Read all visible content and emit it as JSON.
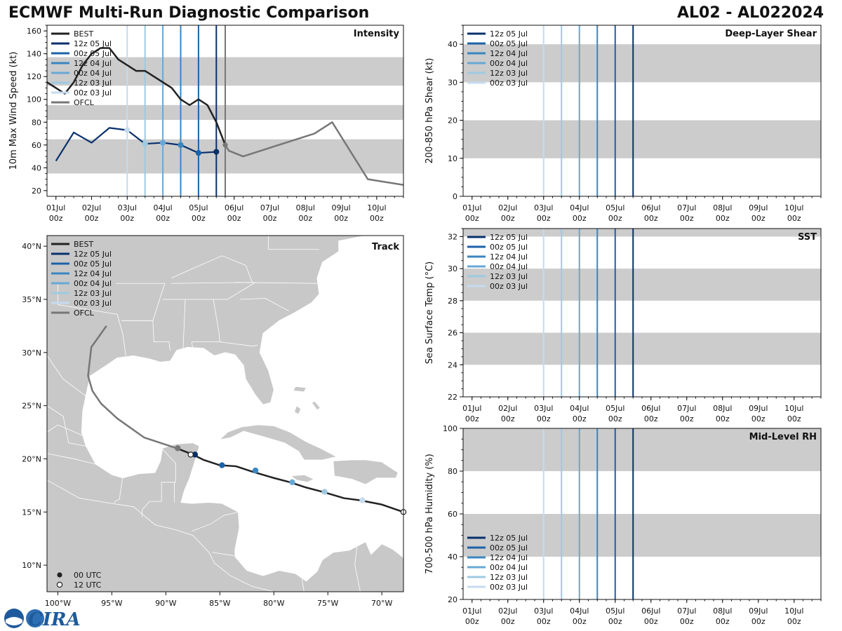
{
  "header": {
    "title_left": "ECMWF Multi-Run Diagnostic Comparison",
    "title_right": "AL02 - AL022024"
  },
  "colors": {
    "best": "#222222",
    "ofcl": "#777777",
    "band": "#cccccc",
    "runs": [
      "#08306b",
      "#1c62a8",
      "#3a86c0",
      "#67a8d6",
      "#9ecae1",
      "#c6dbef"
    ]
  },
  "runs": [
    "12z 05 Jul",
    "00z 05 Jul",
    "12z 04 Jul",
    "00z 04 Jul",
    "12z 03 Jul",
    "00z 03 Jul"
  ],
  "time_axis": {
    "day_labels": [
      "01Jul",
      "02Jul",
      "03Jul",
      "04Jul",
      "05Jul",
      "06Jul",
      "07Jul",
      "08Jul",
      "09Jul",
      "10Jul"
    ],
    "hour_label": "00z"
  },
  "chart_data": [
    {
      "id": "intensity",
      "type": "line",
      "panel_title": "Intensity",
      "ylabel": "10m Max Wind Speed (kt)",
      "ylim": [
        15,
        165
      ],
      "xlim": [
        0.75,
        10.75
      ],
      "yticks": [
        20,
        40,
        60,
        80,
        100,
        120,
        140,
        160
      ],
      "bands": [
        [
          35,
          65
        ],
        [
          82,
          95
        ],
        [
          112,
          137
        ]
      ],
      "init_lines": [
        5.5,
        5.0,
        4.5,
        4.0,
        3.5,
        3.0
      ],
      "ofcl_line": 5.75,
      "legend": [
        "BEST",
        "12z 05 Jul",
        "00z 05 Jul",
        "12z 04 Jul",
        "00z 04 Jul",
        "12z 03 Jul",
        "00z 03 Jul",
        "OFCL"
      ],
      "series": [
        {
          "name": "BEST",
          "x": [
            0.75,
            1.0,
            1.25,
            1.5,
            1.75,
            2.0,
            2.25,
            2.5,
            2.75,
            3.0,
            3.25,
            3.5,
            3.75,
            4.0,
            4.25,
            4.5,
            4.75,
            5.0,
            5.25,
            5.5,
            5.75
          ],
          "y": [
            115,
            110,
            105,
            115,
            130,
            140,
            145,
            145,
            135,
            130,
            125,
            125,
            120,
            115,
            110,
            100,
            95,
            100,
            95,
            80,
            60
          ]
        },
        {
          "name": "12z 05 Jul",
          "x": [
            1.0,
            1.5,
            2.0,
            2.5,
            3.0,
            3.5,
            4.0,
            4.5,
            5.0,
            5.5
          ],
          "y": [
            46,
            71,
            62,
            75,
            73,
            61,
            62,
            60,
            53,
            54
          ]
        },
        {
          "name": "OFCL",
          "x": [
            5.75,
            5.85,
            6.25,
            8.25,
            8.75,
            9.75,
            10.75
          ],
          "y": [
            60,
            55,
            50,
            70,
            80,
            30,
            25
          ]
        }
      ],
      "markers": [
        {
          "x": 3.0,
          "y": 73,
          "run": 5
        },
        {
          "x": 3.5,
          "y": 61,
          "run": 4
        },
        {
          "x": 4.0,
          "y": 62,
          "run": 3
        },
        {
          "x": 4.5,
          "y": 60,
          "run": 2
        },
        {
          "x": 5.0,
          "y": 53,
          "run": 1
        },
        {
          "x": 5.5,
          "y": 54,
          "run": 0
        }
      ]
    },
    {
      "id": "track",
      "type": "map",
      "panel_title": "Track",
      "lon_range": [
        -101,
        -68
      ],
      "lat_range": [
        7.5,
        41
      ],
      "lon_ticks": [
        -100,
        -95,
        -90,
        -85,
        -80,
        -75,
        -70
      ],
      "lon_labels": [
        "100°W",
        "95°W",
        "90°W",
        "85°W",
        "80°W",
        "75°W",
        "70°W"
      ],
      "lat_ticks": [
        10,
        15,
        20,
        25,
        30,
        35,
        40
      ],
      "lat_labels": [
        "10°N",
        "15°N",
        "20°N",
        "25°N",
        "30°N",
        "35°N",
        "40°N"
      ],
      "legend": [
        "BEST",
        "12z 05 Jul",
        "00z 05 Jul",
        "12z 04 Jul",
        "00z 04 Jul",
        "12z 03 Jul",
        "00z 03 Jul",
        "OFCL"
      ],
      "marker_legend": [
        "00 UTC",
        "12 UTC"
      ],
      "best_track": [
        [
          -68,
          15
        ],
        [
          -70,
          15.7
        ],
        [
          -72,
          16.1
        ],
        [
          -73.5,
          16.3
        ],
        [
          -75.5,
          16.9
        ],
        [
          -77,
          17.3
        ],
        [
          -78.5,
          17.8
        ],
        [
          -80,
          18.2
        ],
        [
          -82,
          18.8
        ],
        [
          -83.5,
          19.3
        ],
        [
          -85,
          19.4
        ],
        [
          -86.5,
          19.9
        ],
        [
          -87.5,
          20.4
        ],
        [
          -88,
          20.6
        ],
        [
          -89,
          21
        ]
      ],
      "ofcl_track": [
        [
          -89,
          21
        ],
        [
          -92,
          22
        ],
        [
          -94.5,
          23.8
        ],
        [
          -96,
          25.2
        ],
        [
          -96.8,
          26.4
        ],
        [
          -97.2,
          27.8
        ],
        [
          -96.9,
          30.5
        ],
        [
          -95.5,
          32.5
        ]
      ],
      "track_markers": [
        {
          "lon": -68,
          "lat": 15,
          "run": -1,
          "open": true
        },
        {
          "lon": -71.8,
          "lat": 16.1,
          "run": 5
        },
        {
          "lon": -75.3,
          "lat": 16.9,
          "run": 4
        },
        {
          "lon": -78.3,
          "lat": 17.8,
          "run": 3
        },
        {
          "lon": -81.7,
          "lat": 18.9,
          "run": 2
        },
        {
          "lon": -84.8,
          "lat": 19.4,
          "run": 1
        },
        {
          "lon": -87.3,
          "lat": 20.4,
          "run": 0
        },
        {
          "lon": -87.7,
          "lat": 20.4,
          "run": -1,
          "open": true
        },
        {
          "lon": -88.9,
          "lat": 21,
          "run": -2
        }
      ]
    },
    {
      "id": "shear",
      "type": "line",
      "panel_title": "Deep-Layer Shear",
      "ylabel": "200-850 hPa Shear (kt)",
      "ylim": [
        0,
        45
      ],
      "xlim": [
        0.75,
        10.75
      ],
      "yticks": [
        0,
        10,
        20,
        30,
        40
      ],
      "bands": [
        [
          10,
          20
        ],
        [
          30,
          40
        ]
      ],
      "init_lines": [
        5.5,
        5.0,
        4.5,
        4.0,
        3.5,
        3.0
      ],
      "legend": [
        "12z 05 Jul",
        "00z 05 Jul",
        "12z 04 Jul",
        "00z 04 Jul",
        "12z 03 Jul",
        "00z 03 Jul"
      ],
      "legend_pos": "top-left"
    },
    {
      "id": "sst",
      "type": "line",
      "panel_title": "SST",
      "ylabel": "Sea Surface Temp (°C)",
      "ylim": [
        22,
        32.5
      ],
      "xlim": [
        0.75,
        10.75
      ],
      "yticks": [
        22,
        24,
        26,
        28,
        30,
        32
      ],
      "bands": [
        [
          24,
          26
        ],
        [
          28,
          30
        ],
        [
          32,
          32.5
        ]
      ],
      "init_lines": [
        5.5,
        5.0,
        4.5,
        4.0,
        3.5,
        3.0
      ],
      "legend": [
        "12z 05 Jul",
        "00z 05 Jul",
        "12z 04 Jul",
        "00z 04 Jul",
        "12z 03 Jul",
        "00z 03 Jul"
      ],
      "legend_pos": "top-left"
    },
    {
      "id": "rh",
      "type": "line",
      "panel_title": "Mid-Level RH",
      "ylabel": "700-500 hPa Humidity (%)",
      "ylim": [
        20,
        100
      ],
      "xlim": [
        0.75,
        10.75
      ],
      "yticks": [
        20,
        40,
        60,
        80,
        100
      ],
      "bands": [
        [
          40,
          60
        ],
        [
          80,
          100
        ]
      ],
      "init_lines": [
        5.5,
        5.0,
        4.5,
        4.0,
        3.5,
        3.0
      ],
      "legend": [
        "12z 05 Jul",
        "00z 05 Jul",
        "12z 04 Jul",
        "00z 04 Jul",
        "12z 03 Jul",
        "00z 03 Jul"
      ],
      "legend_pos": "bottom-left"
    }
  ],
  "logo": {
    "text": "CIRA"
  }
}
